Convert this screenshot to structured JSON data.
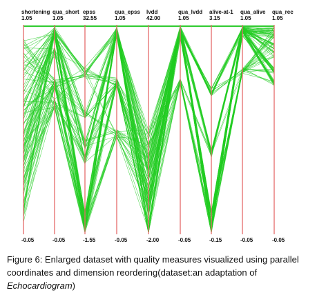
{
  "figure": {
    "caption_prefix": "Figure 6:  Enlarged dataset with quality measures visualized using parallel coordinates and dimension reordering(dataset:an adaptation of ",
    "caption_italic": "Echocardiogram",
    "caption_suffix": ")"
  },
  "chart_data": {
    "type": "parallel-coordinates",
    "colors": {
      "axis": "#e56a6a",
      "line": "#22cc22",
      "top_bar": "#33cc33"
    },
    "axes": [
      {
        "name": "shortening",
        "max": "1.05",
        "min": "-0.05"
      },
      {
        "name": "qua_short",
        "max": "1.05",
        "min": "-0.05"
      },
      {
        "name": "epss",
        "max": "32.55",
        "min": "-1.55"
      },
      {
        "name": "qua_epss",
        "max": "1.05",
        "min": "-0.05"
      },
      {
        "name": "lvdd",
        "max": "42.00",
        "min": "-2.00"
      },
      {
        "name": "qua_lvdd",
        "max": "1.05",
        "min": "-0.05"
      },
      {
        "name": "alive-at-1",
        "max": "3.15",
        "min": "-0.15"
      },
      {
        "name": "qua_alive",
        "max": "1.05",
        "min": "-0.05"
      },
      {
        "name": "qua_rec",
        "max": "1.05",
        "min": "-0.05"
      }
    ],
    "grid": false
  }
}
